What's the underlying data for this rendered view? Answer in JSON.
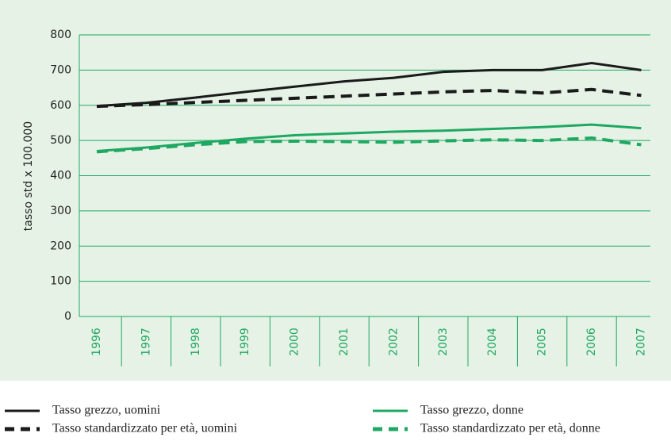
{
  "chart_data": {
    "type": "line",
    "y_label": "tasso std x 100.000",
    "categories": [
      "1996",
      "1997",
      "1998",
      "1999",
      "2000",
      "2001",
      "2002",
      "2003",
      "2004",
      "2005",
      "2006",
      "2007"
    ],
    "ylim": [
      0,
      800
    ],
    "yticks": [
      0,
      100,
      200,
      300,
      400,
      500,
      600,
      700,
      800
    ],
    "grid": true,
    "series": [
      {
        "name": "Tasso grezzo, uomini",
        "color": "#1a1a1a",
        "dashed": false,
        "values": [
          598,
          607,
          622,
          638,
          653,
          668,
          678,
          695,
          700,
          700,
          720,
          700
        ]
      },
      {
        "name": "Tasso standardizzato per età, uomini",
        "color": "#1a1a1a",
        "dashed": true,
        "values": [
          597,
          602,
          608,
          614,
          620,
          626,
          632,
          638,
          642,
          635,
          645,
          628
        ]
      },
      {
        "name": "Tasso grezzo, donne",
        "color": "#1fa862",
        "dashed": false,
        "values": [
          470,
          480,
          493,
          505,
          515,
          520,
          525,
          528,
          533,
          538,
          545,
          535
        ]
      },
      {
        "name": "Tasso standardizzato per età, donne",
        "color": "#1fa862",
        "dashed": true,
        "values": [
          468,
          477,
          488,
          497,
          498,
          497,
          495,
          499,
          502,
          500,
          507,
          488
        ]
      }
    ]
  }
}
